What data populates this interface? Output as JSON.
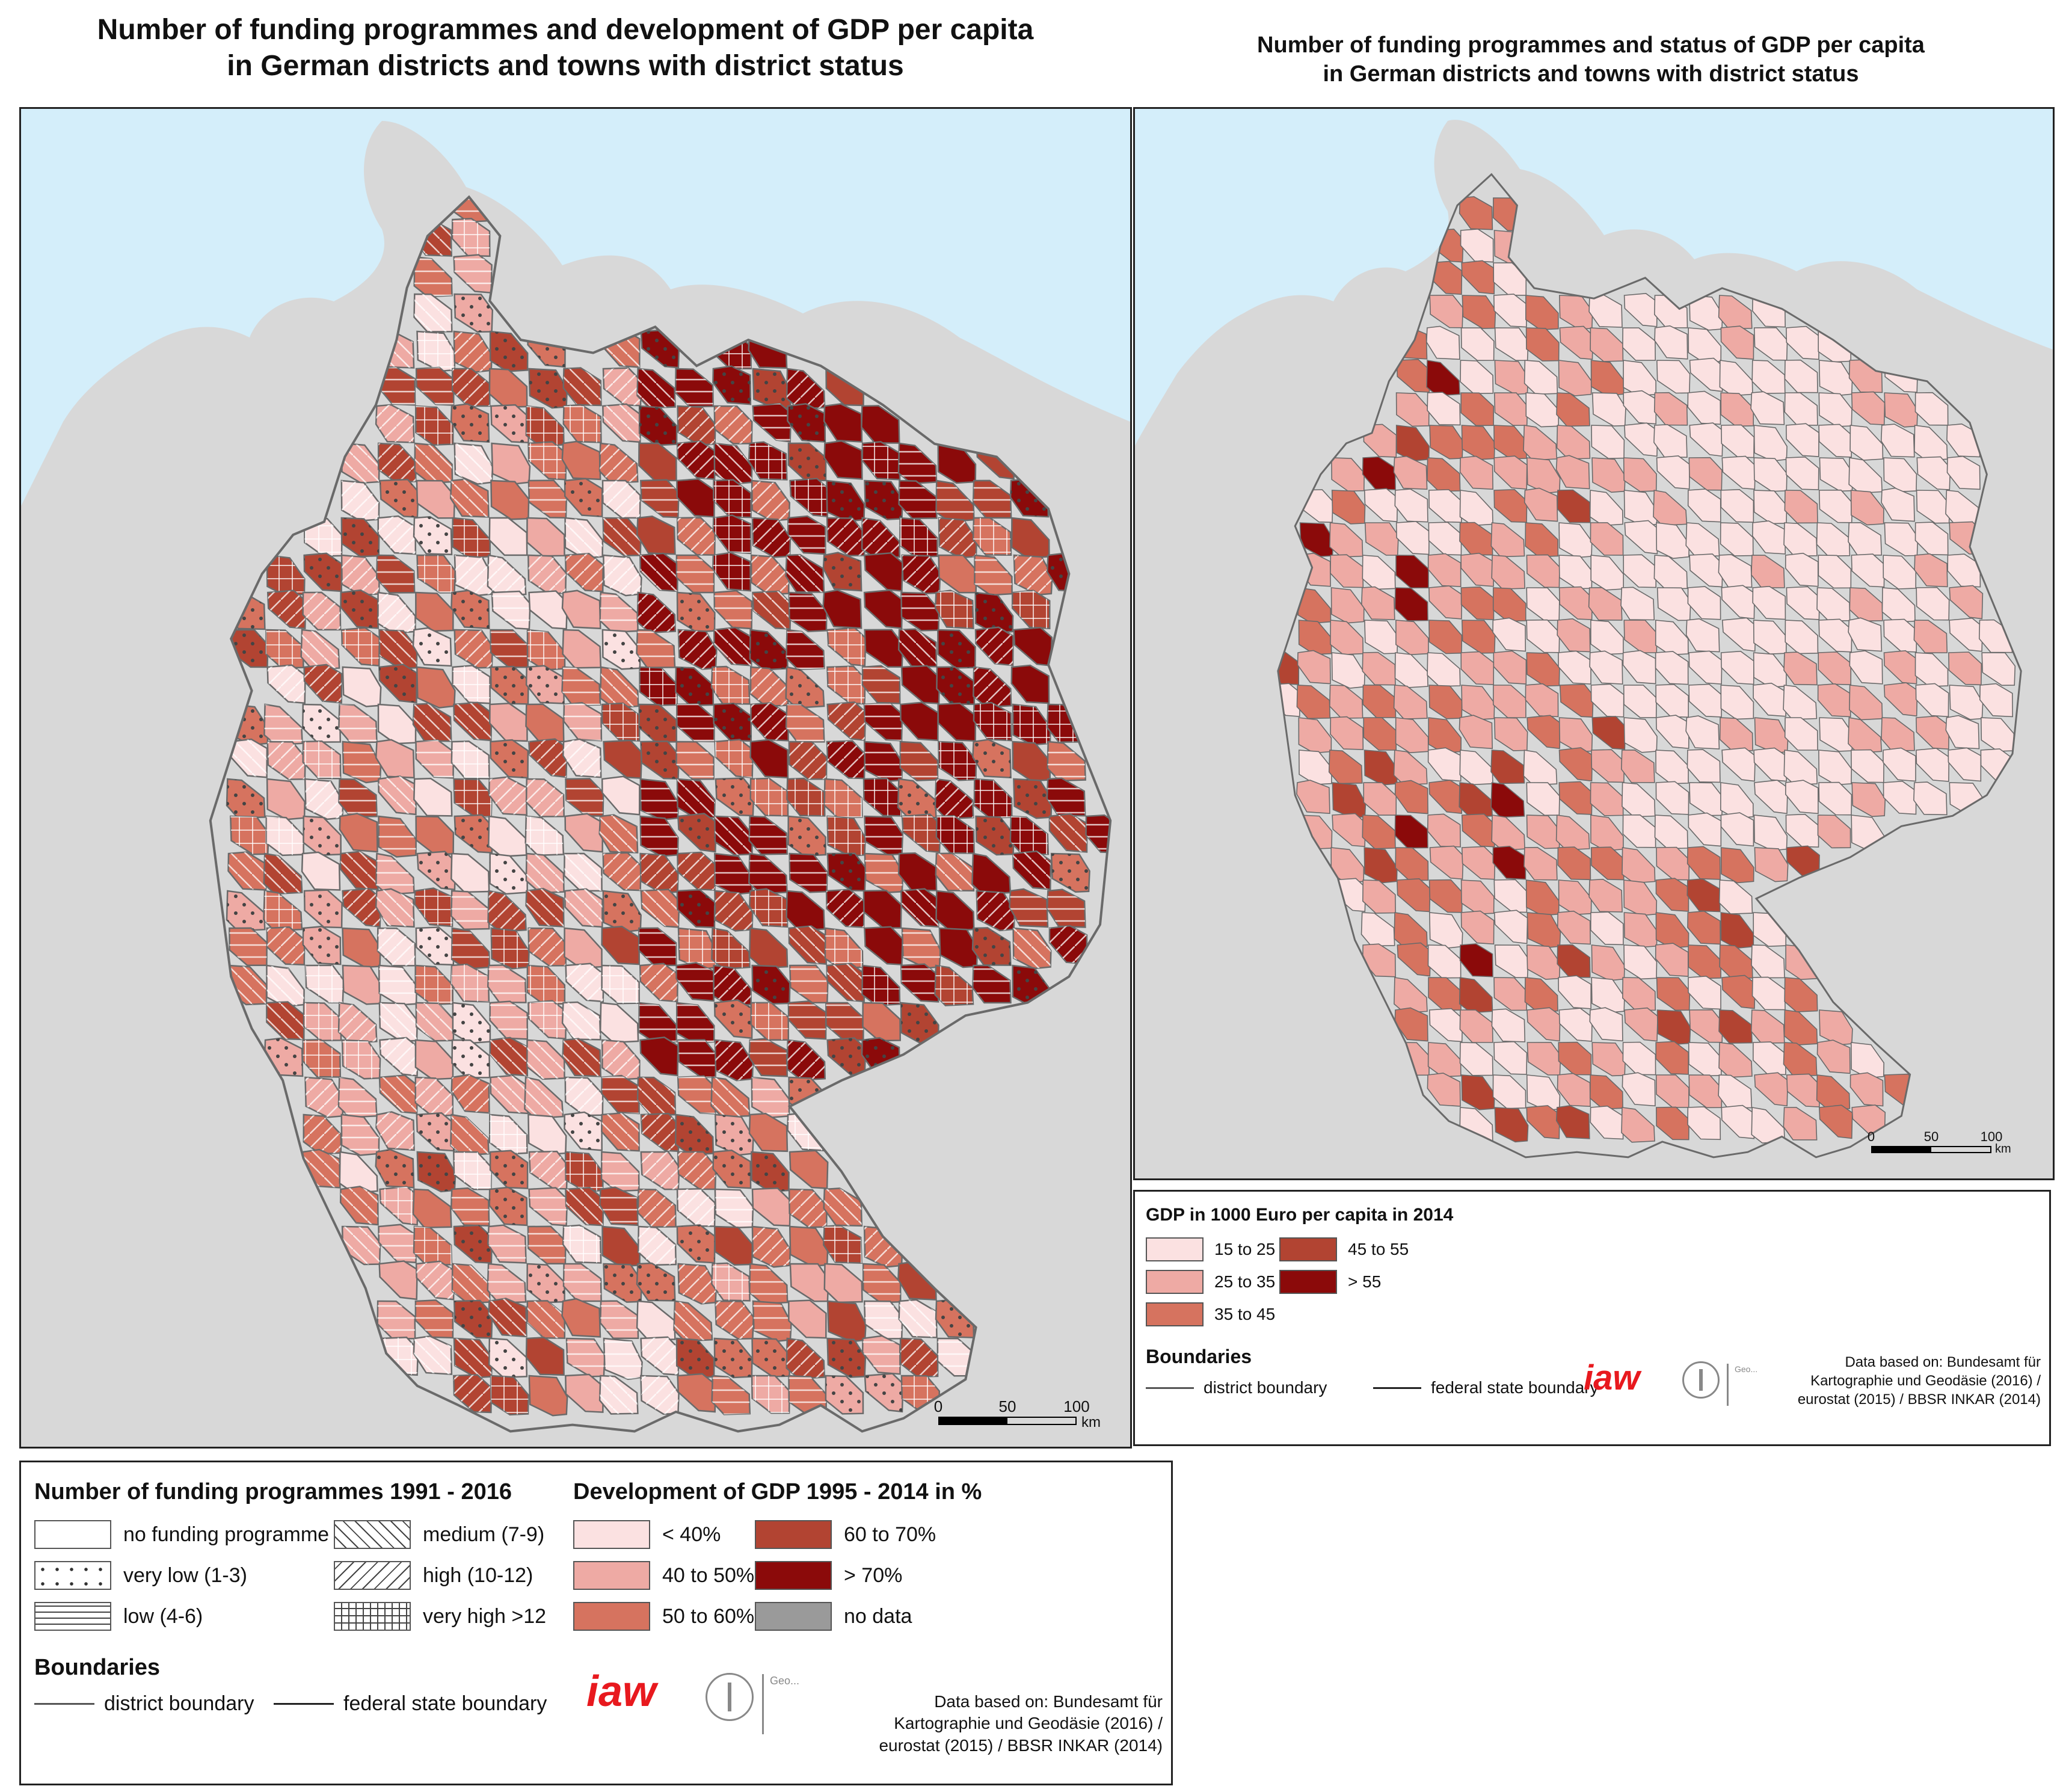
{
  "titles": {
    "left_line1": "Number of funding programmes and development of GDP per capita",
    "left_line2": "in German districts and towns with district status",
    "right_line1": "Number of funding programmes and status of GDP per capita",
    "right_line2": "in German districts and towns with district status"
  },
  "scalebar": {
    "t0": "0",
    "t50": "50",
    "t100": "100",
    "unit": "km"
  },
  "legend_left": {
    "funding_heading": "Number of funding programmes 1991 - 2016",
    "gdp_heading": "Development of GDP 1995 - 2014 in %",
    "funding_items": [
      {
        "label": "no funding programme",
        "pattern": "none"
      },
      {
        "label": "very low (1-3)",
        "pattern": "dots"
      },
      {
        "label": "low (4-6)",
        "pattern": "horizontal"
      },
      {
        "label": "medium (7-9)",
        "pattern": "backslash"
      },
      {
        "label": "high (10-12)",
        "pattern": "slash"
      },
      {
        "label": "very high >12",
        "pattern": "grid"
      }
    ],
    "gdp_items": [
      {
        "label": "< 40%",
        "color": "#fbe1e1"
      },
      {
        "label": "40 to 50%",
        "color": "#eeaaa4"
      },
      {
        "label": "50 to 60%",
        "color": "#d6735f"
      },
      {
        "label": "60 to 70%",
        "color": "#b24432"
      },
      {
        "label": "> 70%",
        "color": "#8b0a0a"
      },
      {
        "label": "no data",
        "color": "#9a9a9a"
      }
    ],
    "boundaries_heading": "Boundaries",
    "district_boundary": "district boundary",
    "state_boundary": "federal state boundary",
    "source_line1": "Data based on: Bundesamt für",
    "source_line2": "Kartographie und Geodäsie (2016) /",
    "source_line3": "eurostat (2015) / BBSR INKAR (2014)"
  },
  "legend_right": {
    "heading": "GDP in 1000 Euro per capita in 2014",
    "items": [
      {
        "label": "15 to 25",
        "color": "#fbe1e1"
      },
      {
        "label": "25 to 35",
        "color": "#eeaaa4"
      },
      {
        "label": "35 to 45",
        "color": "#d6735f"
      },
      {
        "label": "45 to 55",
        "color": "#b24432"
      },
      {
        "label": "> 55",
        "color": "#8b0a0a"
      }
    ],
    "boundaries_heading": "Boundaries",
    "district_boundary": "district boundary",
    "state_boundary": "federal state boundary",
    "source_line1": "Data based on: Bundesamt für",
    "source_line2": "Kartographie und Geodäsie (2016) /",
    "source_line3": "eurostat (2015) / BBSR INKAR (2014)"
  },
  "logos": {
    "iaw": "iaw",
    "geo": "Geo..."
  },
  "colors": {
    "sea": "#d4eefa",
    "land_outside": "#d8d8d8",
    "district_line": "#6a6a6a",
    "frame": "#222222"
  }
}
